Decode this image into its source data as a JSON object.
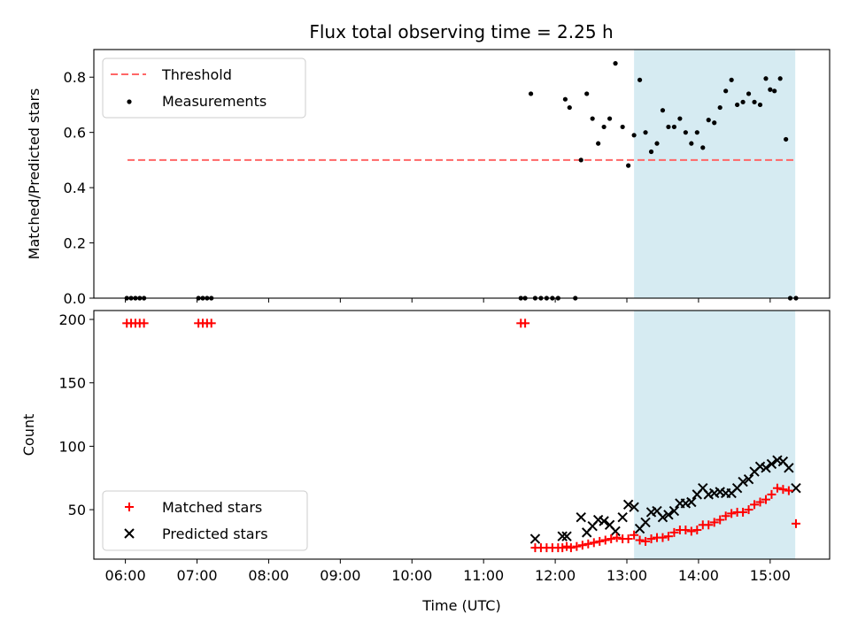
{
  "title": "Flux total observing time = 2.25 h",
  "chart_data": [
    {
      "type": "scatter",
      "panel": "top",
      "ylabel": "Matched/Predicted stars",
      "xlabel": "",
      "xlim": [
        5.56,
        15.83
      ],
      "ylim": [
        0,
        0.9
      ],
      "x_ticks": [
        6,
        7,
        8,
        9,
        10,
        11,
        12,
        13,
        14,
        15
      ],
      "y_ticks": [
        0.0,
        0.2,
        0.4,
        0.6,
        0.8
      ],
      "y_tick_labels": [
        "0.0",
        "0.2",
        "0.4",
        "0.6",
        "0.8"
      ],
      "grid": false,
      "legend_position": "upper-left",
      "shaded_span": {
        "x0": 13.1,
        "x1": 15.35,
        "color": "#add8e6"
      },
      "threshold": {
        "name": "Threshold",
        "value": 0.5,
        "x0": 6.03,
        "x1": 15.35,
        "color": "#ff6666"
      },
      "series": [
        {
          "name": "Measurements",
          "color": "#000000",
          "marker": "dot",
          "x": [
            6.02,
            6.08,
            6.14,
            6.2,
            6.26,
            7.02,
            7.08,
            7.14,
            7.2,
            11.52,
            11.58,
            11.66,
            11.72,
            11.8,
            11.88,
            11.96,
            12.04,
            12.14,
            12.2,
            12.28,
            12.36,
            12.44,
            12.52,
            12.6,
            12.68,
            12.76,
            12.84,
            12.94,
            13.02,
            13.1,
            13.18,
            13.26,
            13.34,
            13.42,
            13.5,
            13.58,
            13.66,
            13.74,
            13.82,
            13.9,
            13.98,
            14.06,
            14.14,
            14.22,
            14.3,
            14.38,
            14.46,
            14.54,
            14.62,
            14.7,
            14.78,
            14.86,
            14.94,
            15.0,
            15.06,
            15.14,
            15.22,
            15.28,
            15.36
          ],
          "y": [
            0.0,
            0.0,
            0.0,
            0.0,
            0.0,
            0.0,
            0.0,
            0.0,
            0.0,
            0.0,
            0.0,
            0.74,
            0.0,
            0.0,
            0.0,
            0.0,
            0.0,
            0.72,
            0.69,
            0.0,
            0.5,
            0.74,
            0.65,
            0.56,
            0.62,
            0.65,
            0.85,
            0.62,
            0.48,
            0.59,
            0.79,
            0.6,
            0.53,
            0.56,
            0.68,
            0.62,
            0.62,
            0.65,
            0.6,
            0.56,
            0.6,
            0.545,
            0.645,
            0.635,
            0.69,
            0.75,
            0.79,
            0.7,
            0.71,
            0.74,
            0.71,
            0.7,
            0.795,
            0.755,
            0.75,
            0.795,
            0.575,
            0.0,
            0.0
          ]
        }
      ]
    },
    {
      "type": "scatter",
      "panel": "bottom",
      "ylabel": "Count",
      "xlabel": "Time (UTC)",
      "xlim": [
        5.56,
        15.83
      ],
      "ylim": [
        11,
        207
      ],
      "x_ticks": [
        6,
        7,
        8,
        9,
        10,
        11,
        12,
        13,
        14,
        15
      ],
      "x_tick_labels": [
        "06:00",
        "07:00",
        "08:00",
        "09:00",
        "10:00",
        "11:00",
        "12:00",
        "13:00",
        "14:00",
        "15:00"
      ],
      "y_ticks": [
        50,
        100,
        150,
        200
      ],
      "y_tick_labels": [
        "50",
        "100",
        "150",
        "200"
      ],
      "grid": false,
      "legend_position": "lower-left",
      "shaded_span": {
        "x0": 13.1,
        "x1": 15.35,
        "color": "#add8e6"
      },
      "series": [
        {
          "name": "Matched stars",
          "color": "#ff0000",
          "marker": "plus",
          "x": [
            6.02,
            6.08,
            6.14,
            6.2,
            6.26,
            7.02,
            7.08,
            7.14,
            7.2,
            11.52,
            11.58,
            11.72,
            11.8,
            11.88,
            11.96,
            12.04,
            12.1,
            12.16,
            12.22,
            12.3,
            12.38,
            12.46,
            12.54,
            12.62,
            12.7,
            12.78,
            12.86,
            12.94,
            13.02,
            13.1,
            13.18,
            13.26,
            13.34,
            13.42,
            13.5,
            13.58,
            13.66,
            13.74,
            13.82,
            13.9,
            13.98,
            14.06,
            14.14,
            14.22,
            14.3,
            14.38,
            14.46,
            14.54,
            14.62,
            14.7,
            14.78,
            14.86,
            14.94,
            15.02,
            15.1,
            15.18,
            15.26,
            15.36
          ],
          "y": [
            197,
            197,
            197,
            197,
            197,
            197,
            197,
            197,
            197,
            197,
            197,
            20,
            20,
            20,
            20,
            20,
            20,
            21,
            20,
            21,
            22,
            23,
            24,
            25,
            26,
            27,
            28,
            27,
            27,
            30,
            26,
            25,
            27,
            28,
            28,
            29,
            32,
            34,
            34,
            33,
            34,
            38,
            38,
            40,
            42,
            45,
            47,
            48,
            48,
            50,
            54,
            56,
            58,
            62,
            67,
            66,
            65,
            39
          ]
        },
        {
          "name": "Predicted stars",
          "color": "#000000",
          "marker": "cross",
          "x": [
            11.72,
            12.1,
            12.16,
            12.36,
            12.44,
            12.52,
            12.6,
            12.68,
            12.76,
            12.84,
            12.94,
            13.02,
            13.1,
            13.18,
            13.26,
            13.34,
            13.42,
            13.5,
            13.58,
            13.66,
            13.74,
            13.82,
            13.9,
            13.98,
            14.06,
            14.14,
            14.22,
            14.3,
            14.38,
            14.46,
            14.54,
            14.62,
            14.7,
            14.78,
            14.86,
            14.94,
            15.02,
            15.1,
            15.18,
            15.26,
            15.36
          ],
          "y": [
            27,
            29,
            29,
            44,
            32,
            37,
            42,
            41,
            38,
            33,
            44,
            54,
            52,
            35,
            40,
            48,
            49,
            44,
            46,
            49,
            55,
            55,
            56,
            62,
            67,
            62,
            63,
            64,
            63,
            63,
            67,
            72,
            74,
            80,
            84,
            83,
            86,
            89,
            88,
            83,
            67
          ]
        }
      ]
    }
  ]
}
